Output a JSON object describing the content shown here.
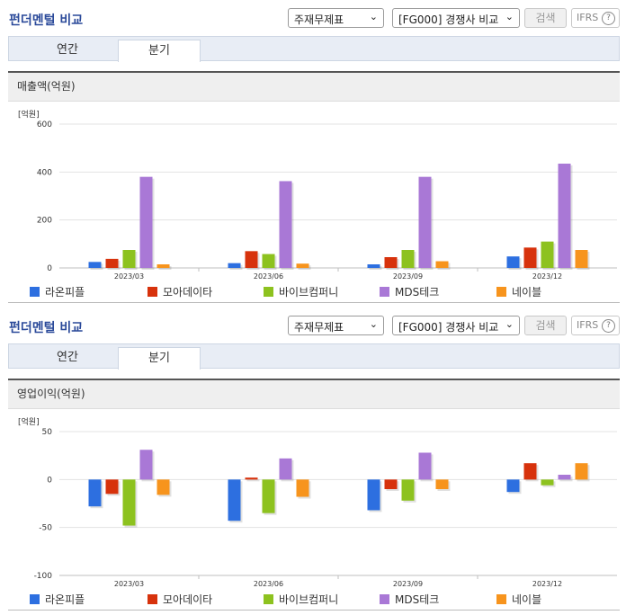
{
  "sections": [
    {
      "header": {
        "title": "펀더멘털 비교",
        "select_statement": "주재무제표",
        "select_compare": "[FG000] 경쟁사 비교",
        "search_label": "검색",
        "ifrs_label": "IFRS",
        "help_symbol": "?"
      },
      "tabs": [
        {
          "label": "연간"
        },
        {
          "label": "분기"
        }
      ],
      "active_tab": "분기",
      "chart_title": "매출액(억원)",
      "unit_label": "[억원]"
    },
    {
      "header": {
        "title": "펀더멘털 비교",
        "select_statement": "주재무제표",
        "select_compare": "[FG000] 경쟁사 비교",
        "search_label": "검색",
        "ifrs_label": "IFRS",
        "help_symbol": "?"
      },
      "tabs": [
        {
          "label": "연간"
        },
        {
          "label": "분기"
        }
      ],
      "active_tab": "분기",
      "chart_title": "영업이익(억원)",
      "unit_label": "[억원]"
    }
  ],
  "chart_data": [
    {
      "type": "bar",
      "title": "매출액(억원)",
      "ylabel": "[억원]",
      "categories": [
        "2023/03",
        "2023/06",
        "2023/09",
        "2023/12"
      ],
      "ylim": [
        0,
        600
      ],
      "yticks": [
        0,
        200,
        400,
        600
      ],
      "grid": true,
      "legend_position": "bottom",
      "series": [
        {
          "name": "라온피플",
          "color": "#2d6fe0",
          "values": [
            25,
            20,
            15,
            48
          ]
        },
        {
          "name": "모아데이타",
          "color": "#d7320c",
          "values": [
            38,
            70,
            45,
            85
          ]
        },
        {
          "name": "바이브컴퍼니",
          "color": "#8dc21f",
          "values": [
            75,
            58,
            75,
            110
          ]
        },
        {
          "name": "MDS테크",
          "color": "#a978d6",
          "values": [
            380,
            362,
            380,
            435
          ]
        },
        {
          "name": "네이블",
          "color": "#f7941d",
          "values": [
            15,
            18,
            28,
            75
          ]
        }
      ]
    },
    {
      "type": "bar",
      "title": "영업이익(억원)",
      "ylabel": "[억원]",
      "categories": [
        "2023/03",
        "2023/06",
        "2023/09",
        "2023/12"
      ],
      "ylim": [
        -100,
        50
      ],
      "yticks": [
        -100,
        -50,
        0,
        50
      ],
      "grid": true,
      "legend_position": "bottom",
      "series": [
        {
          "name": "라온피플",
          "color": "#2d6fe0",
          "values": [
            -28,
            -43,
            -32,
            -13
          ]
        },
        {
          "name": "모아데이타",
          "color": "#d7320c",
          "values": [
            -15,
            2,
            -10,
            17
          ]
        },
        {
          "name": "바이브컴퍼니",
          "color": "#8dc21f",
          "values": [
            -48,
            -35,
            -22,
            -6
          ]
        },
        {
          "name": "MDS테크",
          "color": "#a978d6",
          "values": [
            31,
            22,
            28,
            5
          ]
        },
        {
          "name": "네이블",
          "color": "#f7941d",
          "values": [
            -16,
            -18,
            -10,
            17
          ]
        }
      ]
    }
  ]
}
